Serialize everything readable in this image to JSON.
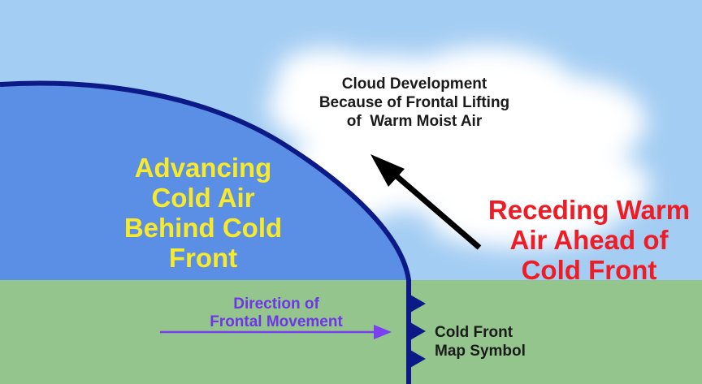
{
  "labels": {
    "cloud": [
      "Cloud Development",
      "Because of Frontal Lifting",
      "of  Warm Moist Air"
    ],
    "cold_air": [
      "Advancing",
      "Cold Air",
      "Behind Cold",
      "Front"
    ],
    "warm_air": [
      "Receding Warm",
      "Air Ahead of",
      "Cold Front"
    ],
    "movement": [
      "Direction of",
      "Frontal Movement"
    ],
    "map_symbol": [
      "Cold Front",
      "Map Symbol"
    ]
  },
  "colors": {
    "sky": "#a4cdf3",
    "ground": "#93c58c",
    "cold_air_mass": "#5b8fe6",
    "front_line": "#0b1a86",
    "cloud": "#ffffff",
    "uplift_arrow": "#000000",
    "movement_arrow": "#7a3ff0",
    "cold_air_text": "#f7ea2a",
    "warm_air_text": "#ee1c25",
    "movement_text": "#6f35e8"
  }
}
